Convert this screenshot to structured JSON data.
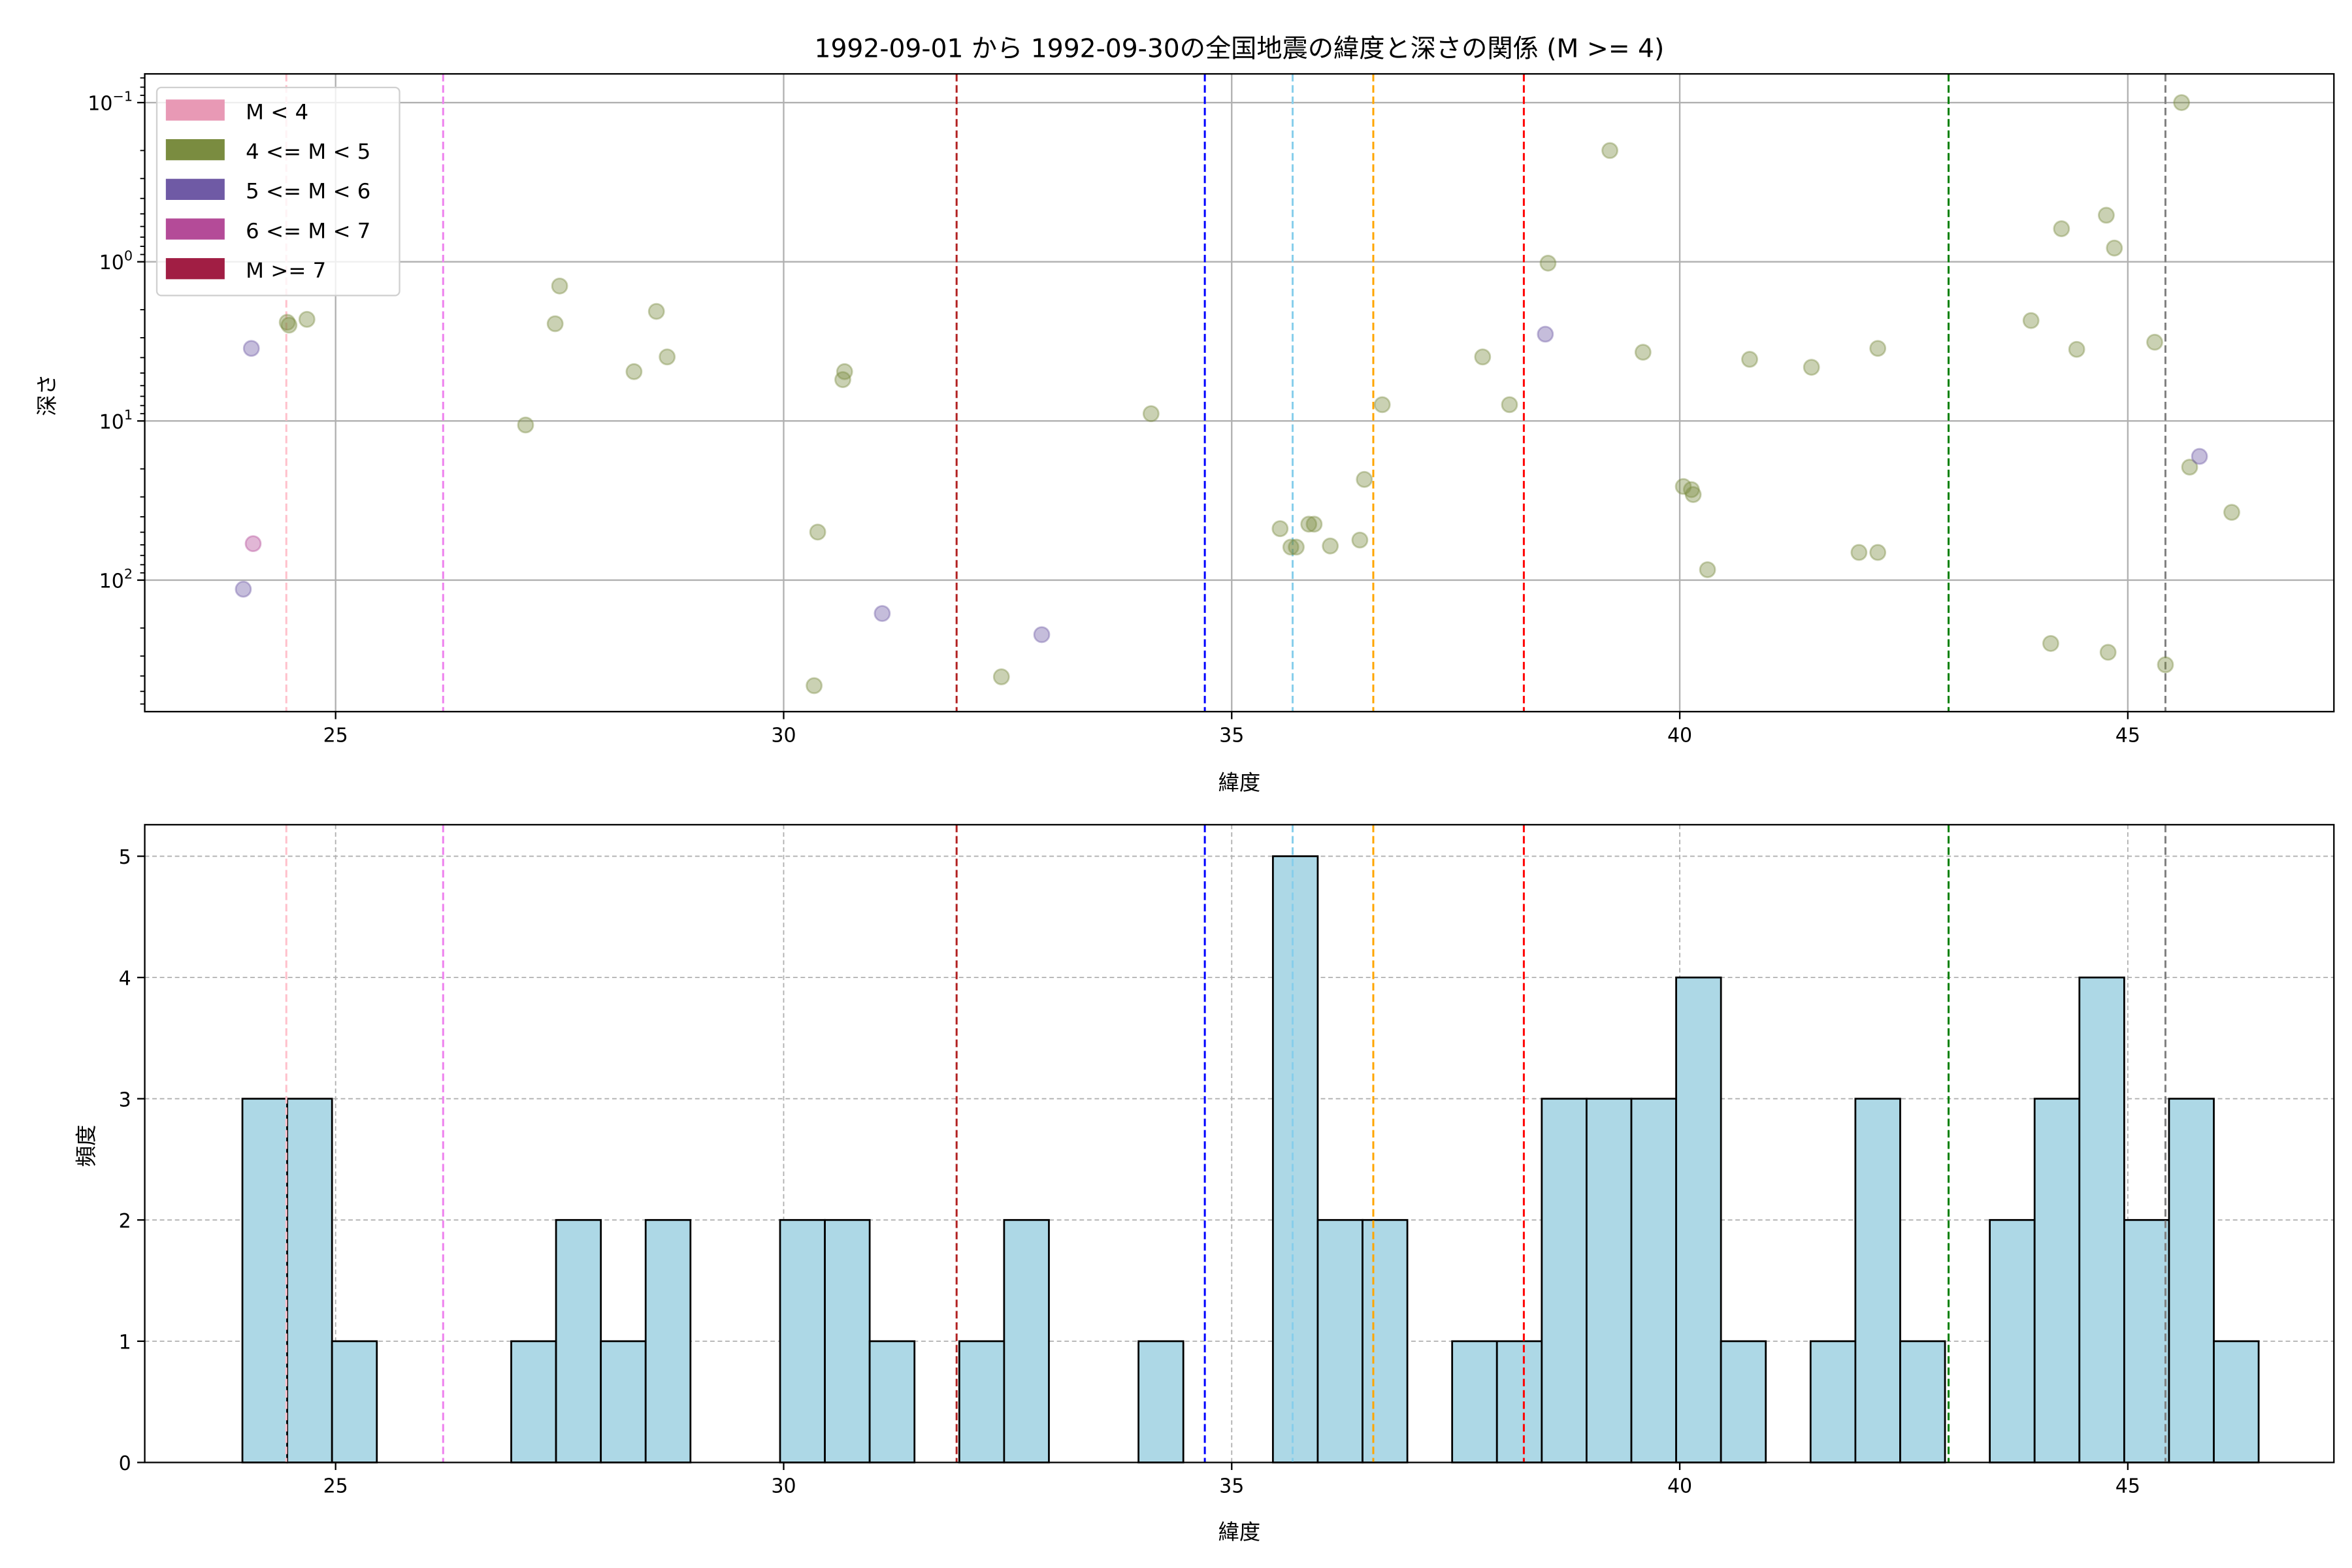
{
  "chart_data": [
    {
      "type": "scatter",
      "title": "1992-09-01 から 1992-09-30の全国地震の緯度と深さの関係 (M >= 4)",
      "xlabel": "緯度",
      "ylabel": "深さ",
      "xlim": [
        22.87,
        47.3
      ],
      "ylim": [
        0.066,
        670
      ],
      "yscale": "log",
      "yinverted": true,
      "grid": true,
      "xticks": [
        25,
        30,
        35,
        40,
        45
      ],
      "yticks": [
        {
          "value": 0.1,
          "base": "10",
          "exp": "−1"
        },
        {
          "value": 1,
          "base": "10",
          "exp": "0"
        },
        {
          "value": 10,
          "base": "10",
          "exp": "1"
        },
        {
          "value": 100,
          "base": "10",
          "exp": "2"
        }
      ],
      "legend": {
        "placement": "top-left",
        "entries": [
          {
            "label": "M < 4",
            "color": "#e899b5"
          },
          {
            "label": "4 <= M < 5",
            "color": "#7a8c40"
          },
          {
            "label": "5 <= M < 6",
            "color": "#6f5aa5"
          },
          {
            "label": "6 <= M < 7",
            "color": "#b44b98"
          },
          {
            "label": "M >= 7",
            "color": "#a11e44"
          }
        ]
      },
      "series": [
        {
          "name": "4 <= M < 5",
          "color": "#7a8c40",
          "points": [
            [
              24.46,
              2.4
            ],
            [
              24.48,
              2.5
            ],
            [
              24.68,
              2.3
            ],
            [
              27.12,
              10.6
            ],
            [
              27.45,
              2.45
            ],
            [
              27.5,
              1.42
            ],
            [
              28.33,
              4.9
            ],
            [
              28.58,
              2.05
            ],
            [
              28.7,
              3.96
            ],
            [
              30.38,
              49.9
            ],
            [
              30.34,
              460
            ],
            [
              30.66,
              5.5
            ],
            [
              30.68,
              4.9
            ],
            [
              32.43,
              405
            ],
            [
              34.1,
              9.0
            ],
            [
              35.54,
              47.5
            ],
            [
              35.66,
              62
            ],
            [
              35.72,
              62
            ],
            [
              35.86,
              44.5
            ],
            [
              35.92,
              44.5
            ],
            [
              36.1,
              61
            ],
            [
              36.43,
              56
            ],
            [
              36.48,
              23.3
            ],
            [
              36.68,
              7.9
            ],
            [
              37.8,
              3.96
            ],
            [
              38.1,
              7.9
            ],
            [
              38.53,
              1.02
            ],
            [
              39.22,
              0.2
            ],
            [
              39.59,
              3.7
            ],
            [
              40.04,
              25.8
            ],
            [
              40.13,
              27
            ],
            [
              40.15,
              29
            ],
            [
              40.31,
              86
            ],
            [
              40.78,
              4.1
            ],
            [
              41.47,
              4.6
            ],
            [
              42.0,
              67
            ],
            [
              42.21,
              67
            ],
            [
              42.21,
              3.5
            ],
            [
              43.92,
              2.34
            ],
            [
              44.14,
              250
            ],
            [
              44.26,
              0.62
            ],
            [
              44.43,
              3.55
            ],
            [
              44.76,
              0.51
            ],
            [
              44.78,
              284
            ],
            [
              44.85,
              0.82
            ],
            [
              45.3,
              3.2
            ],
            [
              45.42,
              340
            ],
            [
              45.6,
              0.1
            ],
            [
              45.69,
              19.5
            ],
            [
              46.16,
              37.5
            ]
          ]
        },
        {
          "name": "5 <= M < 6",
          "color": "#6f5aa5",
          "points": [
            [
              24.06,
              3.5
            ],
            [
              23.97,
              114
            ],
            [
              31.1,
              162
            ],
            [
              32.88,
              220
            ],
            [
              38.5,
              2.85
            ],
            [
              45.8,
              16.7
            ]
          ]
        },
        {
          "name": "6 <= M < 7",
          "color": "#b44b98",
          "points": [
            [
              24.08,
              59
            ]
          ]
        }
      ],
      "vlines": [
        {
          "x": 24.45,
          "color": "#ffc0cb"
        },
        {
          "x": 26.2,
          "color": "#ee82ee"
        },
        {
          "x": 31.93,
          "color": "#b22222"
        },
        {
          "x": 34.7,
          "color": "#0000ff"
        },
        {
          "x": 35.68,
          "color": "#87ceeb"
        },
        {
          "x": 36.58,
          "color": "#ffa500"
        },
        {
          "x": 38.26,
          "color": "#ff0000"
        },
        {
          "x": 43.0,
          "color": "#008000"
        },
        {
          "x": 45.42,
          "color": "#808080"
        }
      ]
    },
    {
      "type": "bar",
      "subtype": "histogram",
      "xlabel": "緯度",
      "ylabel": "頻度",
      "xlim": [
        22.87,
        47.3
      ],
      "ylim": [
        0,
        5.26
      ],
      "xticks": [
        25,
        30,
        35,
        40,
        45
      ],
      "yticks": [
        0,
        1,
        2,
        3,
        4,
        5
      ],
      "grid": true,
      "bar_color": "#add8e6",
      "bin_start": 23.96,
      "bin_width": 0.5,
      "counts": [
        3,
        3,
        1,
        0,
        0,
        0,
        1,
        2,
        1,
        2,
        0,
        0,
        2,
        2,
        1,
        0,
        1,
        2,
        0,
        0,
        1,
        0,
        0,
        5,
        2,
        2,
        0,
        1,
        1,
        3,
        3,
        3,
        4,
        1,
        0,
        1,
        3,
        1,
        0,
        2,
        3,
        4,
        2,
        3,
        1
      ],
      "vlines": [
        {
          "x": 24.45,
          "color": "#ffc0cb"
        },
        {
          "x": 26.2,
          "color": "#ee82ee"
        },
        {
          "x": 31.93,
          "color": "#b22222"
        },
        {
          "x": 34.7,
          "color": "#0000ff"
        },
        {
          "x": 35.68,
          "color": "#87ceeb"
        },
        {
          "x": 36.58,
          "color": "#ffa500"
        },
        {
          "x": 38.26,
          "color": "#ff0000"
        },
        {
          "x": 43.0,
          "color": "#008000"
        },
        {
          "x": 45.42,
          "color": "#808080"
        }
      ]
    }
  ]
}
